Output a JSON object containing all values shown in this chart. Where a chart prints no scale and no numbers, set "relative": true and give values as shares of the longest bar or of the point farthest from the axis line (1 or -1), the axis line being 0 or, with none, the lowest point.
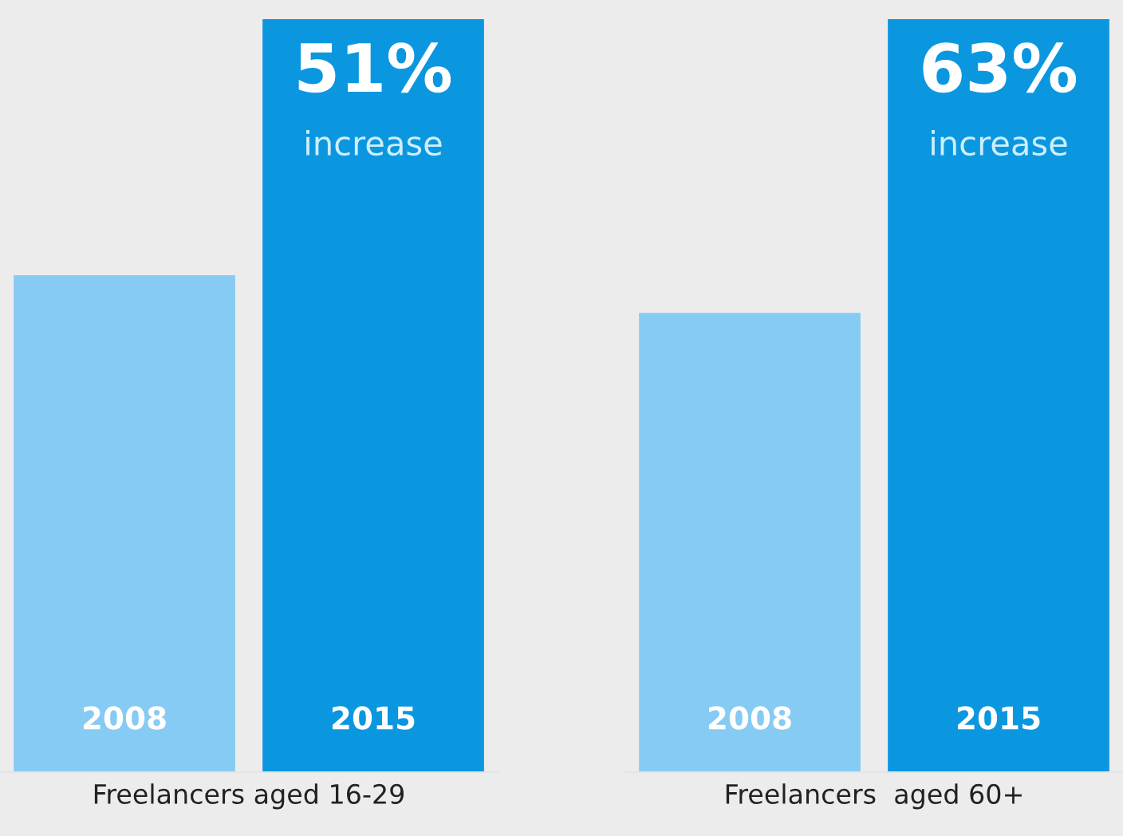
{
  "chart_data": [
    {
      "type": "bar",
      "relative": true,
      "categories": [
        "2008",
        "2015"
      ],
      "colors": [
        "#86cbf3",
        "#0b97df"
      ],
      "values": [
        0.66,
        1
      ],
      "xlabel": "Freelancers aged 16-29",
      "annotations": [
        {
          "text": "51%",
          "x": "2015",
          "y": 1
        },
        "increase"
      ]
    },
    {
      "type": "bar",
      "relative": true,
      "categories": [
        "2008",
        "2015"
      ],
      "colors": [
        "#86cbf3",
        "#0b97df"
      ],
      "values": [
        0.61,
        1
      ],
      "xlabel": "Freelancers  aged 60+",
      "annotations": [
        {
          "text": "63%",
          "x": "2015",
          "y": 1
        },
        "increase"
      ]
    }
  ]
}
